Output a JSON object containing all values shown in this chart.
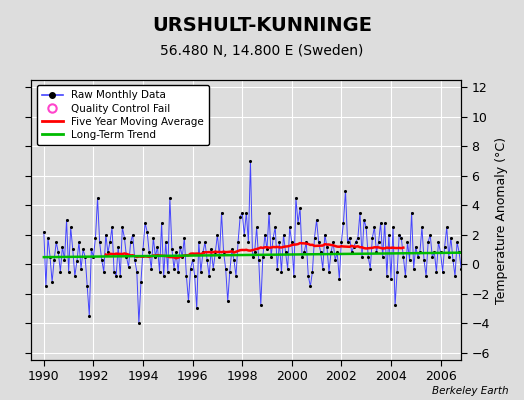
{
  "title": "URSHULT-KUNNINGE",
  "subtitle": "56.480 N, 14.800 E (Sweden)",
  "ylabel": "Temperature Anomaly (°C)",
  "watermark": "Berkeley Earth",
  "xlim": [
    1989.5,
    2006.83
  ],
  "ylim": [
    -6.5,
    12.5
  ],
  "yticks": [
    -6,
    -4,
    -2,
    0,
    2,
    4,
    6,
    8,
    10,
    12
  ],
  "xticks": [
    1990,
    1992,
    1994,
    1996,
    1998,
    2000,
    2002,
    2004,
    2006
  ],
  "bg_color": "#dddddd",
  "plot_bg_color": "#dddddd",
  "grid_color": "#ffffff",
  "raw_color": "#4444ff",
  "raw_marker_color": "#000000",
  "ma_color": "#ff0000",
  "trend_color": "#00bb00",
  "qc_color": "#ff44cc",
  "title_fontsize": 14,
  "subtitle_fontsize": 10,
  "ylabel_fontsize": 9,
  "tick_fontsize": 9,
  "raw_monthly": [
    2.2,
    -1.5,
    1.8,
    0.5,
    -1.2,
    0.3,
    1.5,
    0.8,
    -0.5,
    1.2,
    0.3,
    3.0,
    -0.5,
    2.5,
    1.0,
    -0.8,
    0.2,
    1.5,
    -0.3,
    1.0,
    0.5,
    -1.5,
    -3.5,
    1.0,
    0.5,
    1.8,
    4.5,
    1.5,
    0.3,
    -0.5,
    2.0,
    0.8,
    1.5,
    2.5,
    -0.5,
    -0.8,
    1.2,
    -0.8,
    2.5,
    1.8,
    0.5,
    -0.2,
    1.5,
    2.0,
    0.3,
    -0.5,
    -4.0,
    -1.2,
    1.0,
    2.8,
    2.2,
    0.8,
    -0.3,
    1.8,
    0.5,
    1.2,
    -0.5,
    2.8,
    -0.8,
    1.5,
    -0.5,
    4.5,
    1.0,
    -0.3,
    0.8,
    -0.5,
    1.2,
    0.5,
    1.8,
    -0.8,
    -2.5,
    -0.3,
    0.3,
    -0.8,
    -3.0,
    1.5,
    -0.5,
    0.8,
    1.5,
    0.3,
    -0.8,
    1.0,
    -0.3,
    0.8,
    2.0,
    0.5,
    3.5,
    0.8,
    -0.3,
    -2.5,
    -0.5,
    1.0,
    0.3,
    -0.8,
    1.5,
    3.2,
    3.5,
    2.0,
    3.5,
    1.5,
    7.0,
    0.5,
    0.8,
    2.5,
    0.3,
    -2.8,
    0.5,
    2.0,
    1.0,
    3.5,
    0.5,
    1.8,
    2.5,
    -0.3,
    1.5,
    -0.5,
    2.0,
    0.8,
    -0.3,
    2.5,
    1.5,
    -0.8,
    4.5,
    2.8,
    3.8,
    0.5,
    0.8,
    1.5,
    -0.8,
    -1.5,
    -0.5,
    1.8,
    3.0,
    1.5,
    0.8,
    -0.3,
    2.0,
    1.2,
    -0.5,
    0.8,
    1.5,
    0.3,
    0.8,
    -1.0,
    1.5,
    2.8,
    5.0,
    1.5,
    1.8,
    0.8,
    1.2,
    1.5,
    1.8,
    3.5,
    0.5,
    3.0,
    2.5,
    0.5,
    -0.3,
    1.8,
    2.5,
    0.8,
    1.5,
    2.8,
    0.5,
    2.8,
    -0.8,
    2.0,
    -1.0,
    2.5,
    -2.8,
    -0.5,
    2.0,
    1.8,
    0.5,
    -0.8,
    1.5,
    0.3,
    3.5,
    -0.3,
    1.2,
    0.5,
    0.8,
    2.5,
    0.3,
    -0.8,
    1.5,
    2.0,
    0.5,
    0.8,
    -0.5,
    1.5,
    0.8,
    -0.5,
    1.2,
    2.5,
    0.5,
    1.8,
    0.3,
    -0.8,
    1.5,
    0.8,
    -0.3,
    1.2
  ]
}
